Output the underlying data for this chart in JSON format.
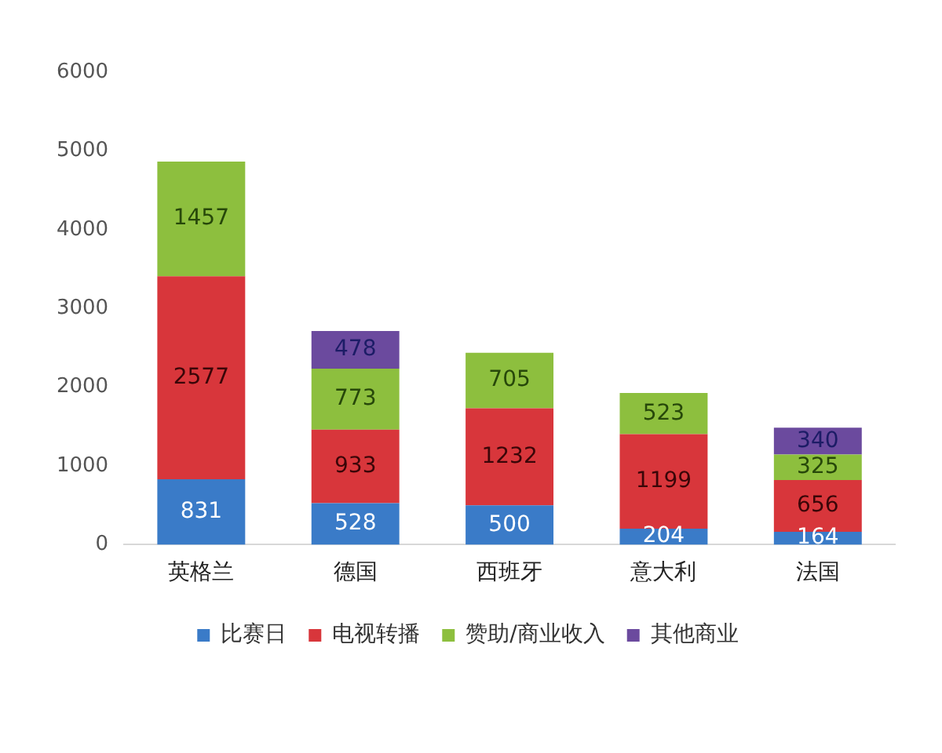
{
  "chart_data": {
    "type": "bar",
    "stacked": true,
    "categories": [
      "英格兰",
      "德国",
      "西班牙",
      "意大利",
      "法国"
    ],
    "series": [
      {
        "name": "比赛日",
        "color": "#3a7bc8",
        "values": [
          831,
          528,
          500,
          204,
          164
        ]
      },
      {
        "name": "电视转播",
        "color": "#d8363b",
        "values": [
          2577,
          933,
          1232,
          1199,
          656
        ]
      },
      {
        "name": "赞助/商业收入",
        "color": "#8dbf3e",
        "values": [
          1457,
          773,
          705,
          523,
          325
        ]
      },
      {
        "name": "其他商业",
        "color": "#6b4a9e",
        "values": [
          null,
          478,
          null,
          null,
          340
        ]
      }
    ],
    "ylim": [
      0,
      6000
    ],
    "yticks": [
      0,
      1000,
      2000,
      3000,
      4000,
      5000,
      6000
    ],
    "grid": false,
    "legend": "bottom",
    "data_labels": true
  }
}
